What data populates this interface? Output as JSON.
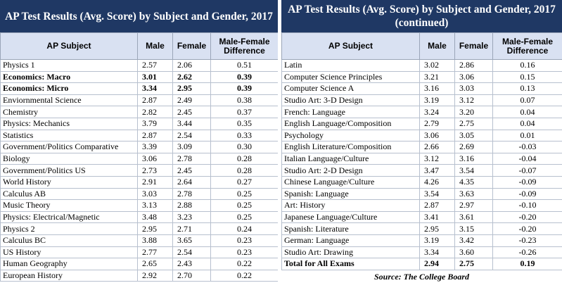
{
  "left": {
    "title": "AP Test Results (Avg. Score) by Subject and Gender, 2017",
    "headers": {
      "subject": "AP Subject",
      "male": "Male",
      "female": "Female",
      "diff": "Male-Female Difference"
    },
    "rows": [
      {
        "subject": "Physics 1",
        "male": "2.57",
        "female": "2.06",
        "diff": "0.51",
        "bold": false
      },
      {
        "subject": "Economics: Macro",
        "male": "3.01",
        "female": "2.62",
        "diff": "0.39",
        "bold": true
      },
      {
        "subject": "Economics: Micro",
        "male": "3.34",
        "female": "2.95",
        "diff": "0.39",
        "bold": true
      },
      {
        "subject": "Enviornmental Science",
        "male": "2.87",
        "female": "2.49",
        "diff": "0.38",
        "bold": false
      },
      {
        "subject": "Chemistry",
        "male": "2.82",
        "female": "2.45",
        "diff": "0.37",
        "bold": false
      },
      {
        "subject": "Physics: Mechanics",
        "male": "3.79",
        "female": "3.44",
        "diff": "0.35",
        "bold": false
      },
      {
        "subject": "Statistics",
        "male": "2.87",
        "female": "2.54",
        "diff": "0.33",
        "bold": false
      },
      {
        "subject": "Government/Politics Comparative",
        "male": "3.39",
        "female": "3.09",
        "diff": "0.30",
        "bold": false
      },
      {
        "subject": "Biology",
        "male": "3.06",
        "female": "2.78",
        "diff": "0.28",
        "bold": false
      },
      {
        "subject": "Government/Politics US",
        "male": "2.73",
        "female": "2.45",
        "diff": "0.28",
        "bold": false
      },
      {
        "subject": "World History",
        "male": "2.91",
        "female": "2.64",
        "diff": "0.27",
        "bold": false
      },
      {
        "subject": "Calculus AB",
        "male": "3.03",
        "female": "2.78",
        "diff": "0.25",
        "bold": false
      },
      {
        "subject": "Music Theory",
        "male": "3.13",
        "female": "2.88",
        "diff": "0.25",
        "bold": false
      },
      {
        "subject": "Physics: Electrical/Magnetic",
        "male": "3.48",
        "female": "3.23",
        "diff": "0.25",
        "bold": false
      },
      {
        "subject": "Physics 2",
        "male": "2.95",
        "female": "2.71",
        "diff": "0.24",
        "bold": false
      },
      {
        "subject": "Calculus BC",
        "male": "3.88",
        "female": "3.65",
        "diff": "0.23",
        "bold": false
      },
      {
        "subject": "US History",
        "male": "2.77",
        "female": "2.54",
        "diff": "0.23",
        "bold": false
      },
      {
        "subject": "Human Geography",
        "male": "2.65",
        "female": "2.43",
        "diff": "0.22",
        "bold": false
      },
      {
        "subject": "European History",
        "male": "2.92",
        "female": "2.70",
        "diff": "0.22",
        "bold": false
      }
    ]
  },
  "right": {
    "title": "AP Test Results (Avg. Score) by Subject and Gender, 2017 (continued)",
    "headers": {
      "subject": "AP Subject",
      "male": "Male",
      "female": "Female",
      "diff": "Male-Female Difference"
    },
    "rows": [
      {
        "subject": "Latin",
        "male": "3.02",
        "female": "2.86",
        "diff": "0.16",
        "bold": false
      },
      {
        "subject": "Computer Science Principles",
        "male": "3.21",
        "female": "3.06",
        "diff": "0.15",
        "bold": false
      },
      {
        "subject": "Computer Science A",
        "male": "3.16",
        "female": "3.03",
        "diff": "0.13",
        "bold": false
      },
      {
        "subject": "Studio Art: 3-D Design",
        "male": "3.19",
        "female": "3.12",
        "diff": "0.07",
        "bold": false
      },
      {
        "subject": "French: Language",
        "male": "3.24",
        "female": "3.20",
        "diff": "0.04",
        "bold": false
      },
      {
        "subject": "English Language/Composition",
        "male": "2.79",
        "female": "2.75",
        "diff": "0.04",
        "bold": false
      },
      {
        "subject": "Psychology",
        "male": "3.06",
        "female": "3.05",
        "diff": "0.01",
        "bold": false
      },
      {
        "subject": "English Literature/Composition",
        "male": "2.66",
        "female": "2.69",
        "diff": "-0.03",
        "bold": false
      },
      {
        "subject": "Italian Language/Culture",
        "male": "3.12",
        "female": "3.16",
        "diff": "-0.04",
        "bold": false
      },
      {
        "subject": "Studio Art: 2-D Design",
        "male": "3.47",
        "female": "3.54",
        "diff": "-0.07",
        "bold": false
      },
      {
        "subject": "Chinese Language/Culture",
        "male": "4.26",
        "female": "4.35",
        "diff": "-0.09",
        "bold": false
      },
      {
        "subject": "Spanish: Language",
        "male": "3.54",
        "female": "3.63",
        "diff": "-0.09",
        "bold": false
      },
      {
        "subject": "Art: History",
        "male": "2.87",
        "female": "2.97",
        "diff": "-0.10",
        "bold": false
      },
      {
        "subject": "Japanese Language/Culture",
        "male": "3.41",
        "female": "3.61",
        "diff": "-0.20",
        "bold": false
      },
      {
        "subject": "Spanish: Literature",
        "male": "2.95",
        "female": "3.15",
        "diff": "-0.20",
        "bold": false
      },
      {
        "subject": "German: Language",
        "male": "3.19",
        "female": "3.42",
        "diff": "-0.23",
        "bold": false
      },
      {
        "subject": "Studio Art: Drawing",
        "male": "3.34",
        "female": "3.60",
        "diff": "-0.26",
        "bold": false
      },
      {
        "subject": "Total for All Exams",
        "male": "2.94",
        "female": "2.75",
        "diff": "0.19",
        "bold": true
      }
    ]
  },
  "source": "Source: The College Board",
  "colors": {
    "title_bg": "#1f3864",
    "header_bg": "#d9e1f2"
  }
}
